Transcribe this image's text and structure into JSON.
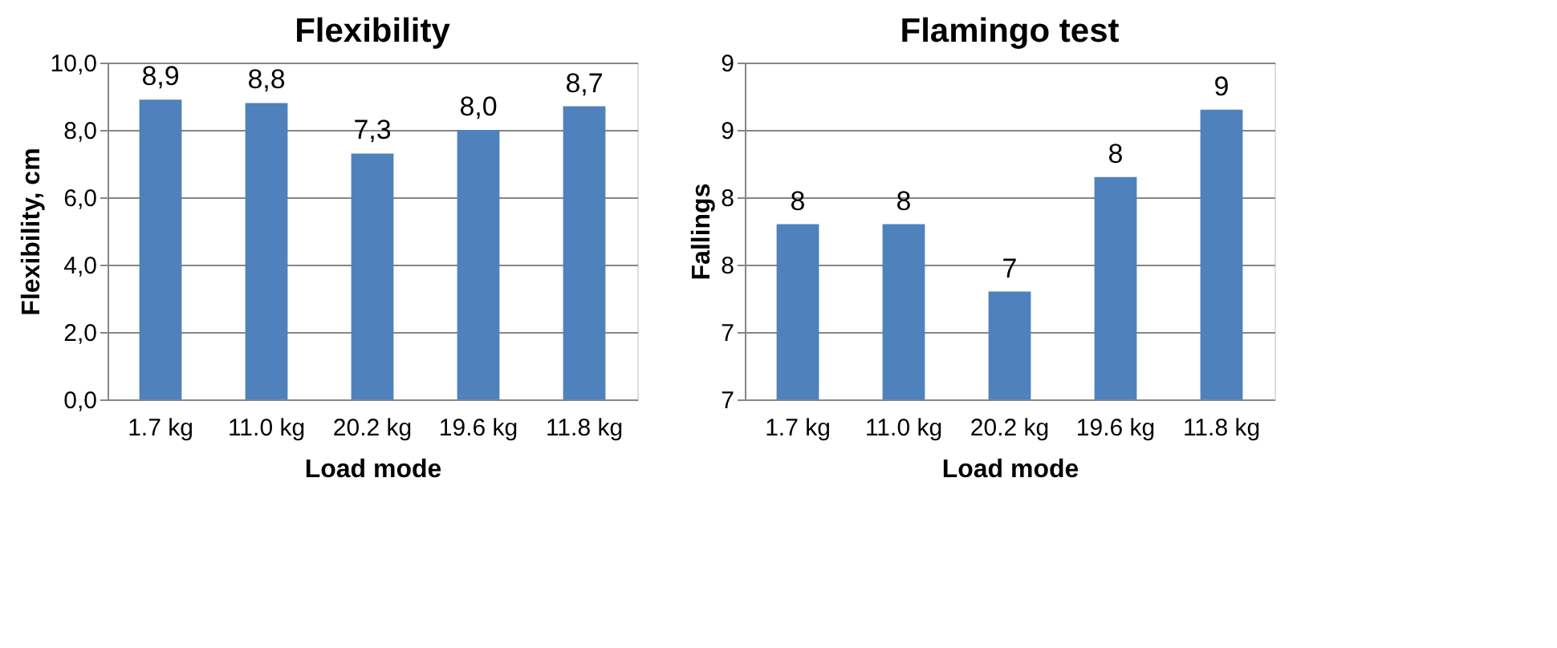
{
  "chart_data": [
    {
      "type": "bar",
      "title": "Flexibility",
      "xlabel": "Load mode",
      "ylabel": "Flexibility, cm",
      "categories": [
        "1.7 kg",
        "11.0 kg",
        "20.2 kg",
        "19.6 kg",
        "11.8 kg"
      ],
      "series": [
        {
          "color": "#4f81bd",
          "values": [
            8.9,
            8.8,
            7.3,
            8.0,
            8.7
          ],
          "value_labels": [
            "8,9",
            "8,8",
            "7,3",
            "8,0",
            "8,7"
          ]
        }
      ],
      "ylim": [
        0,
        10
      ],
      "yticks": [
        {
          "value": 0,
          "label": "0,0"
        },
        {
          "value": 2,
          "label": "2,0"
        },
        {
          "value": 4,
          "label": "4,0"
        },
        {
          "value": 6,
          "label": "6,0"
        },
        {
          "value": 8,
          "label": "8,0"
        },
        {
          "value": 10,
          "label": "10,0"
        }
      ],
      "grid": "y"
    },
    {
      "type": "bar",
      "title": "Flamingo test",
      "xlabel": "Load mode",
      "ylabel": "Fallings",
      "categories": [
        "1.7 kg",
        "11.0 kg",
        "20.2 kg",
        "19.6 kg",
        "11.8 kg"
      ],
      "series": [
        {
          "color": "#4f81bd",
          "values": [
            7.8,
            7.8,
            7.3,
            8.15,
            8.65
          ],
          "value_labels": [
            "8",
            "8",
            "7",
            "8",
            "9"
          ]
        }
      ],
      "ylim": [
        6.5,
        9
      ],
      "yticks": [
        {
          "value": 6.5,
          "label": "7"
        },
        {
          "value": 7,
          "label": "7"
        },
        {
          "value": 7.5,
          "label": "8"
        },
        {
          "value": 8,
          "label": "8"
        },
        {
          "value": 8.5,
          "label": "9"
        },
        {
          "value": 9,
          "label": "9"
        }
      ],
      "grid": "y"
    }
  ]
}
